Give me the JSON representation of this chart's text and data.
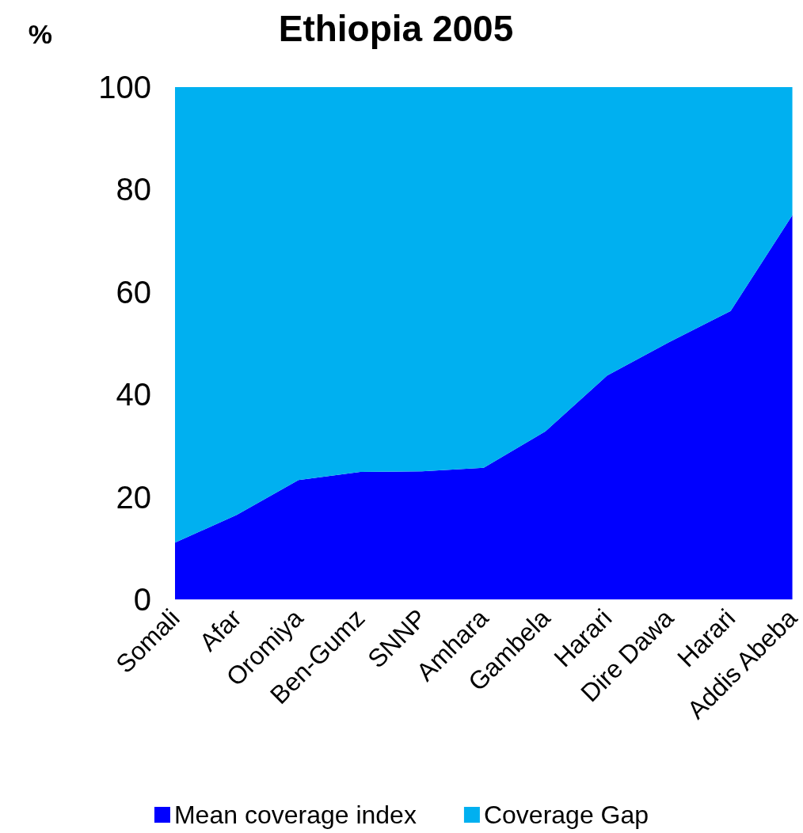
{
  "chart_data": {
    "type": "area",
    "title": "Ethiopia 2005",
    "ylabel": "%",
    "stacked": true,
    "categories": [
      "Somali",
      "Afar",
      "Oromiya",
      "Ben-Gumz",
      "SNNP",
      "Amhara",
      "Gambela",
      "Harari",
      "Dire Dawa",
      "Harari",
      "Addis Abeba"
    ],
    "series": [
      {
        "name": "Mean coverage index",
        "color": "#0000ff",
        "values": [
          11.1,
          16.5,
          23.3,
          24.9,
          25.0,
          25.7,
          32.8,
          43.7,
          50.2,
          56.3,
          75.0
        ]
      },
      {
        "name": "Coverage Gap",
        "color": "#00b0f0",
        "values": [
          88.9,
          83.5,
          76.7,
          75.1,
          75.0,
          74.3,
          67.2,
          56.3,
          49.8,
          43.7,
          25.0
        ]
      }
    ],
    "ylim": [
      0,
      100
    ],
    "yticks": [
      0,
      20,
      40,
      60,
      80,
      100
    ],
    "grid": false,
    "legend": "bottom",
    "marker": "none"
  }
}
